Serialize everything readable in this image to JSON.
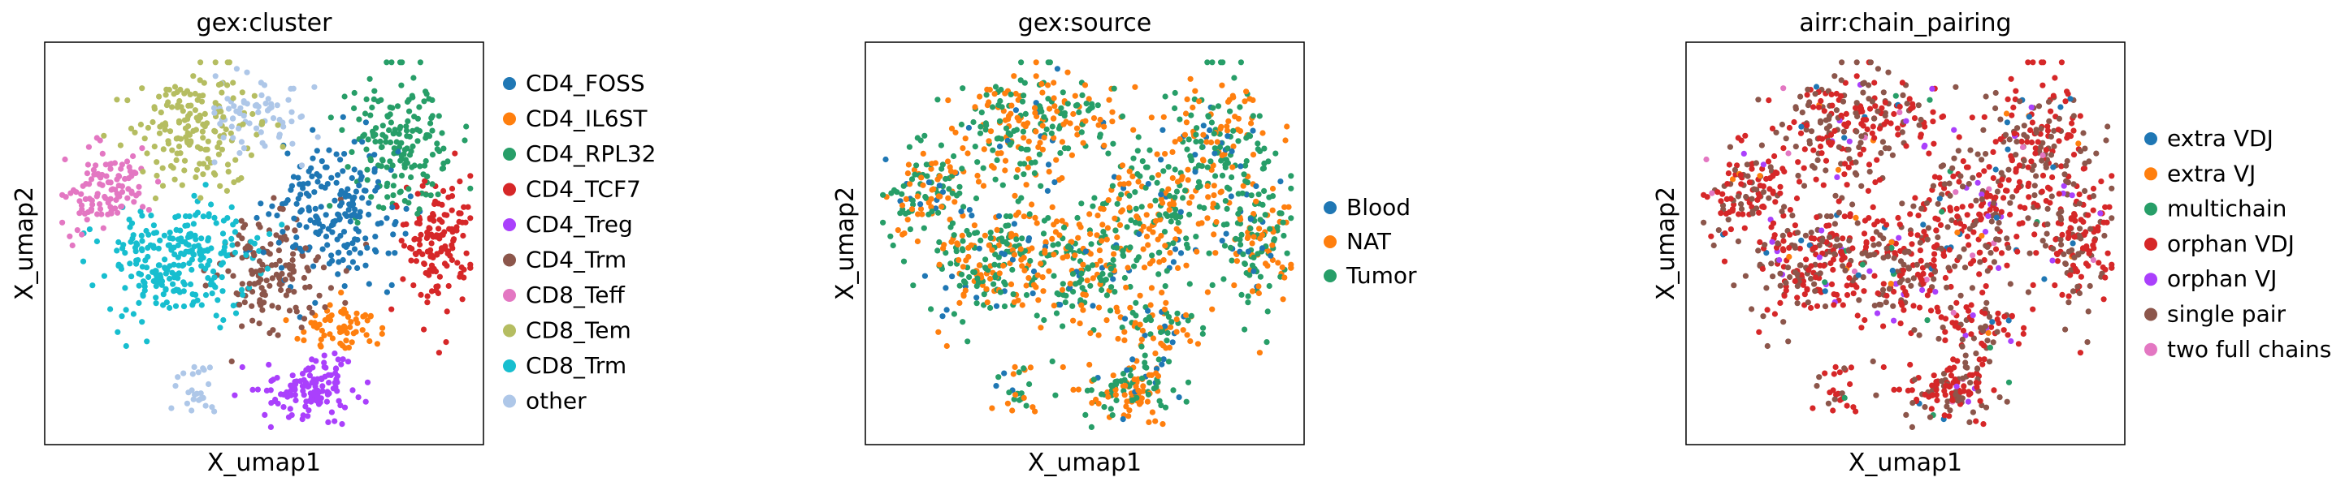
{
  "chart_data": [
    {
      "type": "scatter",
      "title": "gex:cluster",
      "xlabel": "X_umap1",
      "ylabel": "X_umap2",
      "legend_position": "right",
      "grid": false,
      "categories": [
        {
          "name": "CD4_FOSS",
          "color": "#1f77b4"
        },
        {
          "name": "CD4_IL6ST",
          "color": "#ff7f0e"
        },
        {
          "name": "CD4_RPL32",
          "color": "#279e68"
        },
        {
          "name": "CD4_TCF7",
          "color": "#d62728"
        },
        {
          "name": "CD4_Treg",
          "color": "#aa40fc"
        },
        {
          "name": "CD4_Trm",
          "color": "#8c564b"
        },
        {
          "name": "CD8_Teff",
          "color": "#e377c2"
        },
        {
          "name": "CD8_Tem",
          "color": "#b5bd61"
        },
        {
          "name": "CD8_Trm",
          "color": "#17becf"
        },
        {
          "name": "other",
          "color": "#aec7e8"
        }
      ]
    },
    {
      "type": "scatter",
      "title": "gex:source",
      "xlabel": "X_umap1",
      "ylabel": "X_umap2",
      "legend_position": "right",
      "grid": false,
      "categories": [
        {
          "name": "Blood",
          "color": "#1f77b4"
        },
        {
          "name": "NAT",
          "color": "#ff7f0e"
        },
        {
          "name": "Tumor",
          "color": "#279e68"
        }
      ]
    },
    {
      "type": "scatter",
      "title": "airr:chain_pairing",
      "xlabel": "X_umap1",
      "ylabel": "X_umap2",
      "legend_position": "right",
      "grid": false,
      "categories": [
        {
          "name": "extra VDJ",
          "color": "#1f77b4"
        },
        {
          "name": "extra VJ",
          "color": "#ff7f0e"
        },
        {
          "name": "multichain",
          "color": "#279e68"
        },
        {
          "name": "orphan VDJ",
          "color": "#d62728"
        },
        {
          "name": "orphan VJ",
          "color": "#aa40fc"
        },
        {
          "name": "single pair",
          "color": "#8c564b"
        },
        {
          "name": "two full chains",
          "color": "#e377c2"
        }
      ]
    }
  ]
}
